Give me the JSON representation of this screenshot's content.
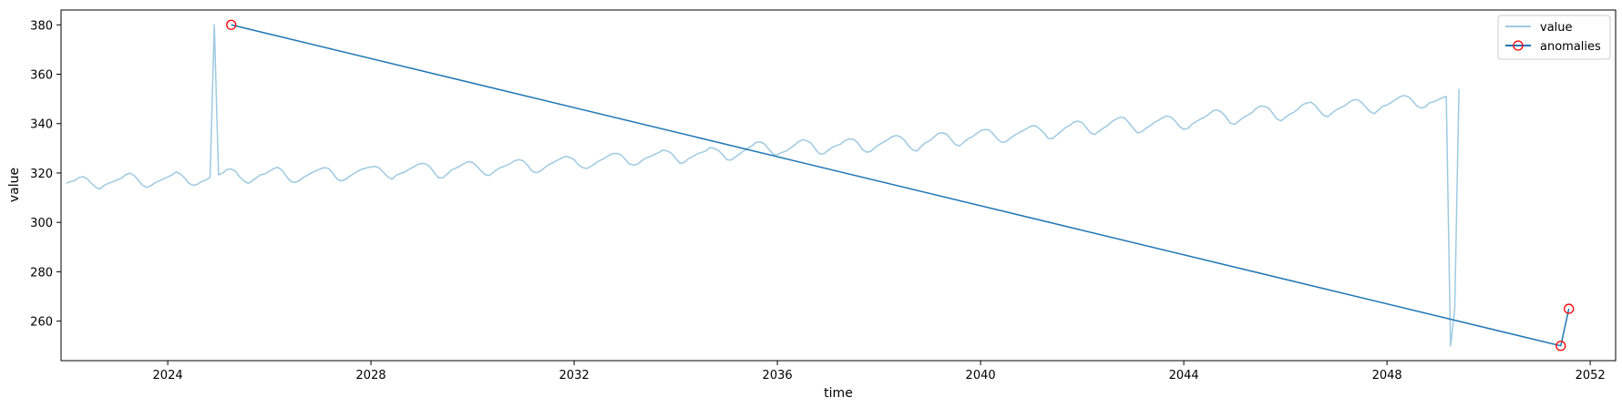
{
  "chart_data": {
    "type": "line",
    "xlabel": "time",
    "ylabel": "value",
    "xlim": [
      2021.9,
      2052.5
    ],
    "ylim": [
      244,
      386
    ],
    "x_ticks": [
      2024,
      2028,
      2032,
      2036,
      2040,
      2044,
      2048,
      2052
    ],
    "y_ticks": [
      260,
      280,
      300,
      320,
      340,
      360,
      380
    ],
    "legend_position": "top-right",
    "series": [
      {
        "name": "value",
        "color": "#9ecae1",
        "x_start": 2022.0,
        "x_step": 0.0833333,
        "values": [
          315.8,
          316.5,
          316.9,
          318.2,
          318.5,
          317.6,
          315.8,
          314.2,
          313.5,
          315.0,
          315.8,
          316.4,
          317.2,
          317.8,
          319.2,
          319.9,
          319.1,
          317.2,
          315.1,
          314.2,
          314.8,
          316.0,
          316.8,
          317.6,
          318.4,
          319.2,
          320.4,
          319.6,
          318.0,
          315.8,
          315.0,
          315.4,
          316.5,
          317.2,
          318.2,
          380.0,
          319.2,
          320.0,
          321.4,
          321.6,
          320.7,
          318.4,
          316.8,
          315.8,
          316.8,
          318.2,
          319.3,
          319.7,
          320.7,
          321.8,
          322.3,
          321.1,
          318.7,
          316.6,
          316.2,
          316.8,
          318.2,
          319.1,
          320.1,
          320.9,
          321.6,
          322.2,
          321.8,
          319.9,
          317.5,
          316.8,
          317.4,
          318.7,
          319.8,
          320.8,
          321.6,
          322.1,
          322.4,
          322.7,
          322.0,
          320.2,
          318.4,
          317.5,
          319.1,
          319.8,
          320.4,
          321.5,
          322.4,
          323.4,
          323.9,
          323.6,
          322.4,
          320.0,
          318.0,
          318.1,
          319.5,
          321.2,
          321.9,
          322.8,
          323.8,
          324.6,
          324.3,
          322.8,
          320.9,
          319.3,
          319.0,
          320.4,
          321.7,
          322.4,
          323.1,
          323.9,
          325.0,
          325.4,
          324.9,
          323.1,
          320.8,
          320.1,
          320.7,
          322.1,
          323.4,
          324.2,
          325.1,
          326.0,
          326.8,
          326.3,
          325.4,
          323.3,
          322.2,
          321.8,
          322.7,
          323.9,
          325.0,
          325.8,
          326.9,
          327.8,
          327.9,
          327.4,
          325.7,
          323.7,
          323.2,
          323.6,
          325.0,
          326.1,
          326.7,
          327.5,
          328.3,
          329.3,
          328.9,
          328.0,
          325.9,
          323.9,
          324.3,
          325.8,
          326.6,
          327.7,
          328.3,
          328.8,
          330.3,
          330.0,
          329.2,
          327.6,
          325.4,
          325.2,
          326.4,
          327.6,
          328.9,
          330.0,
          331.0,
          332.4,
          332.6,
          331.7,
          329.6,
          327.6,
          327.4,
          328.3,
          328.8,
          330.0,
          331.2,
          332.7,
          333.5,
          333.0,
          332.1,
          329.6,
          327.7,
          327.8,
          329.2,
          330.4,
          331.1,
          331.7,
          333.2,
          333.8,
          333.6,
          332.2,
          329.7,
          328.4,
          328.7,
          330.2,
          331.4,
          332.4,
          333.4,
          334.6,
          335.2,
          334.7,
          333.3,
          331.0,
          329.3,
          328.9,
          330.8,
          332.3,
          333.1,
          334.6,
          336.0,
          336.3,
          335.7,
          333.6,
          331.6,
          330.9,
          332.4,
          333.8,
          334.6,
          335.9,
          337.1,
          337.6,
          337.5,
          335.8,
          333.7,
          332.4,
          332.6,
          334.1,
          335.3,
          336.2,
          337.1,
          338.1,
          339.0,
          339.1,
          337.8,
          336.2,
          334.0,
          334.0,
          335.4,
          336.8,
          338.3,
          339.2,
          340.6,
          341.0,
          340.4,
          338.3,
          336.2,
          335.6,
          336.9,
          338.2,
          339.2,
          340.8,
          341.8,
          342.6,
          342.3,
          340.4,
          338.2,
          336.3,
          336.6,
          338.0,
          339.1,
          340.4,
          341.3,
          342.4,
          343.1,
          342.6,
          341.0,
          338.8,
          337.7,
          338.1,
          339.8,
          340.9,
          341.9,
          342.7,
          343.9,
          345.3,
          345.5,
          344.5,
          342.6,
          340.1,
          339.7,
          341.0,
          342.4,
          343.3,
          344.3,
          346.0,
          347.1,
          347.0,
          346.3,
          344.2,
          341.8,
          341.1,
          342.5,
          343.8,
          344.6,
          345.9,
          347.6,
          348.3,
          348.7,
          347.4,
          345.3,
          343.4,
          342.8,
          344.3,
          345.5,
          346.4,
          347.2,
          348.6,
          349.6,
          349.7,
          348.6,
          346.6,
          344.9,
          344.0,
          345.5,
          347.0,
          347.6,
          348.5,
          349.7,
          350.8,
          351.4,
          350.9,
          349.3,
          347.2,
          346.3,
          346.7,
          348.4,
          348.8,
          349.6,
          350.4,
          351.0,
          250.0,
          265.0,
          354.0
        ]
      },
      {
        "name": "anomalies",
        "color": "#1f77b4",
        "marker_color": "#ff0000",
        "points": [
          {
            "x": 2025.25,
            "y": 380
          },
          {
            "x": 2051.42,
            "y": 250
          },
          {
            "x": 2051.58,
            "y": 265
          }
        ]
      }
    ]
  }
}
